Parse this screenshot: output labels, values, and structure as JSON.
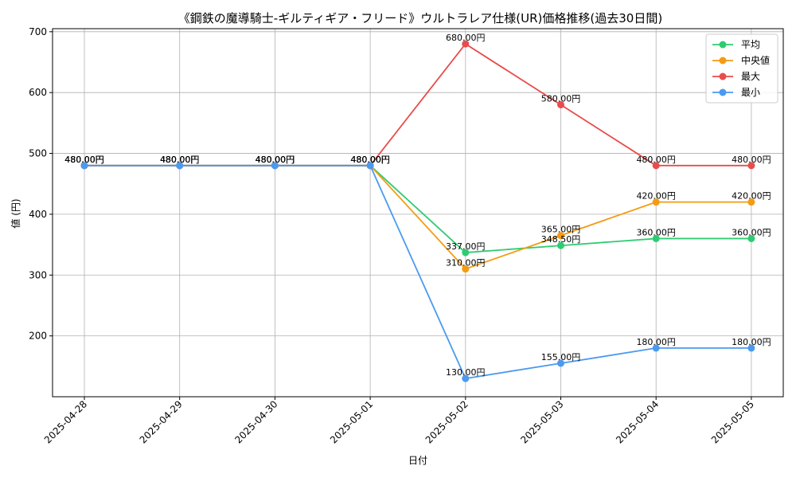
{
  "chart_data": {
    "type": "line",
    "title": "《鋼鉄の魔導騎士-ギルティギア・フリード》ウルトラレア仕様(UR)価格推移(過去30日間)",
    "xlabel": "日付",
    "ylabel": "値 (円)",
    "categories": [
      "2025-04-28",
      "2025-04-29",
      "2025-04-30",
      "2025-05-01",
      "2025-05-02",
      "2025-05-03",
      "2025-05-04",
      "2025-05-05"
    ],
    "ylim": [
      100,
      705
    ],
    "yticks": [
      200,
      300,
      400,
      500,
      600,
      700
    ],
    "grid": true,
    "legend_position": "top-right",
    "series": [
      {
        "name": "平均",
        "color": "#2ecc71",
        "values": [
          480,
          480,
          480,
          480,
          337,
          348.5,
          360,
          360
        ],
        "labels": [
          "480.00円",
          "480.00円",
          "480.00円",
          "480.00円",
          "337.00円",
          "348.50円",
          "360.00円",
          "360.00円"
        ]
      },
      {
        "name": "中央値",
        "color": "#f39c12",
        "values": [
          480,
          480,
          480,
          480,
          310,
          365,
          420,
          420
        ],
        "labels": [
          "480.00円",
          "480.00円",
          "480.00円",
          "480.00円",
          "310.00円",
          "365.00円",
          "420.00円",
          "420.00円"
        ]
      },
      {
        "name": "最大",
        "color": "#e84c4c",
        "values": [
          480,
          480,
          480,
          480,
          680,
          580,
          480,
          480
        ],
        "labels": [
          "480.00円",
          "480.00円",
          "480.00円",
          "480.00円",
          "680.00円",
          "580.00円",
          "480.00円",
          "480.00円"
        ]
      },
      {
        "name": "最小",
        "color": "#4a9af0",
        "values": [
          480,
          480,
          480,
          480,
          130,
          155,
          180,
          180
        ],
        "labels": [
          "480.00円",
          "480.00円",
          "480.00円",
          "480.00円",
          "130.00円",
          "155.00円",
          "180.00円",
          "180.00円"
        ]
      }
    ]
  }
}
